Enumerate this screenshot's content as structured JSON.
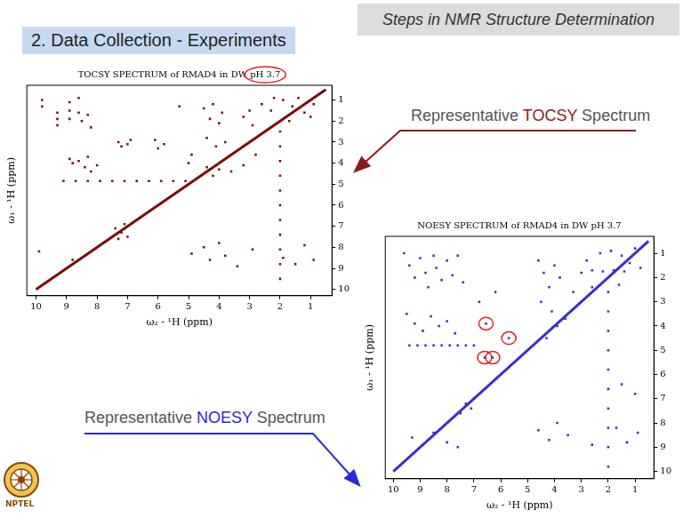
{
  "header": "Steps in NMR Structure Determination",
  "section_title": "2. Data Collection - Experiments",
  "labels": [
    {
      "text": "Representative TOCSY Spectrum",
      "emphasis": "TOCSY",
      "color": "#8b1a1a"
    },
    {
      "text": "Representative NOESY Spectrum",
      "emphasis": "NOESY",
      "color": "#2a2ad0"
    }
  ],
  "logo_text": "NPTEL",
  "chart_data": [
    {
      "type": "scatter",
      "title": "TOCSY SPECTRUM of RMAD4 in DW pH 3.7",
      "title_highlight": "pH 3.7",
      "x_label": "ω₂ - ¹H (ppm)",
      "y_label": "ω₁ - ¹H (ppm)",
      "xlim": [
        10.3,
        0.3
      ],
      "ylim": [
        10.3,
        0.3
      ],
      "xticks": [
        10,
        9,
        8,
        7,
        6,
        5,
        4,
        3,
        2,
        1
      ],
      "yticks": [
        1,
        2,
        3,
        4,
        5,
        6,
        7,
        8,
        9,
        10
      ],
      "color": "#7b0c0c",
      "grid": false,
      "marker": "square",
      "diagonal": [
        [
          10,
          10
        ],
        [
          0.5,
          0.5
        ]
      ],
      "peaks": [
        [
          9.8,
          1.0
        ],
        [
          9.8,
          1.3
        ],
        [
          9.3,
          1.6
        ],
        [
          9.3,
          1.9
        ],
        [
          9.3,
          2.2
        ],
        [
          8.9,
          1.1
        ],
        [
          8.9,
          1.5
        ],
        [
          8.9,
          1.9
        ],
        [
          8.6,
          0.9
        ],
        [
          8.6,
          1.6
        ],
        [
          8.5,
          2.0
        ],
        [
          8.3,
          1.7
        ],
        [
          8.2,
          2.3
        ],
        [
          8.9,
          3.8
        ],
        [
          8.8,
          4.0
        ],
        [
          8.6,
          3.9
        ],
        [
          8.4,
          4.2
        ],
        [
          8.3,
          3.7
        ],
        [
          8.2,
          4.4
        ],
        [
          8.0,
          4.1
        ],
        [
          9.1,
          4.85
        ],
        [
          8.7,
          4.85
        ],
        [
          8.3,
          4.85
        ],
        [
          7.9,
          4.85
        ],
        [
          7.5,
          4.85
        ],
        [
          7.1,
          4.85
        ],
        [
          6.7,
          4.85
        ],
        [
          6.3,
          4.85
        ],
        [
          5.9,
          4.85
        ],
        [
          5.5,
          4.85
        ],
        [
          5.1,
          4.85
        ],
        [
          7.4,
          7.1
        ],
        [
          7.2,
          7.3
        ],
        [
          7.0,
          7.5
        ],
        [
          7.3,
          7.6
        ],
        [
          7.1,
          6.9
        ],
        [
          7.3,
          3.0
        ],
        [
          7.2,
          3.2
        ],
        [
          7.0,
          3.1
        ],
        [
          6.9,
          2.9
        ],
        [
          6.1,
          2.9
        ],
        [
          5.8,
          3.1
        ],
        [
          6.0,
          3.3
        ],
        [
          4.5,
          1.4
        ],
        [
          4.3,
          1.9
        ],
        [
          4.2,
          1.2
        ],
        [
          4.0,
          2.1
        ],
        [
          3.9,
          1.6
        ],
        [
          4.4,
          2.8
        ],
        [
          4.1,
          3.2
        ],
        [
          3.8,
          3.0
        ],
        [
          4.2,
          4.6
        ],
        [
          4.0,
          4.3
        ],
        [
          4.4,
          4.2
        ],
        [
          3.6,
          4.4
        ],
        [
          3.2,
          1.8
        ],
        [
          3.0,
          1.5
        ],
        [
          2.9,
          2.2
        ],
        [
          2.6,
          1.2
        ],
        [
          1.9,
          1.0
        ],
        [
          1.6,
          1.3
        ],
        [
          1.4,
          0.9
        ],
        [
          1.2,
          1.6
        ],
        [
          1.0,
          1.8
        ],
        [
          0.9,
          1.2
        ],
        [
          1.7,
          2.0
        ],
        [
          2.3,
          1.5
        ],
        [
          2.2,
          0.9
        ],
        [
          2.0,
          2.5
        ],
        [
          2.0,
          3.2
        ],
        [
          2.0,
          3.9
        ],
        [
          2.0,
          4.6
        ],
        [
          2.0,
          5.3
        ],
        [
          2.0,
          6.0
        ],
        [
          2.0,
          6.7
        ],
        [
          2.0,
          7.4
        ],
        [
          2.0,
          8.1
        ],
        [
          2.0,
          8.8
        ],
        [
          2.0,
          9.5
        ],
        [
          9.9,
          8.2
        ],
        [
          8.8,
          8.6
        ],
        [
          4.9,
          8.3
        ],
        [
          4.5,
          8.0
        ],
        [
          4.3,
          8.6
        ],
        [
          4.0,
          7.8
        ],
        [
          3.8,
          8.4
        ],
        [
          3.4,
          8.9
        ],
        [
          2.9,
          8.1
        ],
        [
          1.9,
          8.5
        ],
        [
          1.5,
          8.8
        ],
        [
          1.2,
          7.9
        ],
        [
          0.9,
          8.6
        ],
        [
          5.3,
          1.3
        ],
        [
          4.9,
          3.6
        ],
        [
          5.0,
          4.0
        ],
        [
          3.2,
          4.1
        ],
        [
          2.8,
          3.6
        ]
      ],
      "circled": []
    },
    {
      "type": "scatter",
      "title": "NOESY SPECTRUM of RMAD4 in DW pH 3.7",
      "x_label": "ω₂ - ¹H (ppm)",
      "y_label": "ω₁ - ¹H (ppm)",
      "xlim": [
        10.3,
        0.3
      ],
      "ylim": [
        10.3,
        0.3
      ],
      "xticks": [
        10,
        9,
        8,
        7,
        6,
        5,
        4,
        3,
        2,
        1
      ],
      "yticks": [
        1,
        2,
        3,
        4,
        5,
        6,
        7,
        8,
        9,
        10
      ],
      "color": "#3a2fd0",
      "grid": false,
      "marker": "square",
      "diagonal": [
        [
          10,
          10
        ],
        [
          0.5,
          0.5
        ]
      ],
      "peaks": [
        [
          9.6,
          1.0
        ],
        [
          9.4,
          1.5
        ],
        [
          9.2,
          2.0
        ],
        [
          9.0,
          1.2
        ],
        [
          8.8,
          1.8
        ],
        [
          8.7,
          2.4
        ],
        [
          8.5,
          1.1
        ],
        [
          8.4,
          1.6
        ],
        [
          8.2,
          2.1
        ],
        [
          8.0,
          1.3
        ],
        [
          7.8,
          1.9
        ],
        [
          7.6,
          1.1
        ],
        [
          7.4,
          2.2
        ],
        [
          9.5,
          3.5
        ],
        [
          9.2,
          3.9
        ],
        [
          8.9,
          4.2
        ],
        [
          8.6,
          3.6
        ],
        [
          8.3,
          4.0
        ],
        [
          8.0,
          3.8
        ],
        [
          7.7,
          4.3
        ],
        [
          9.4,
          4.8
        ],
        [
          9.1,
          4.8
        ],
        [
          8.8,
          4.8
        ],
        [
          8.5,
          4.8
        ],
        [
          8.2,
          4.8
        ],
        [
          7.9,
          4.8
        ],
        [
          7.6,
          4.8
        ],
        [
          7.3,
          4.8
        ],
        [
          7.0,
          4.8
        ],
        [
          7.3,
          7.2
        ],
        [
          7.1,
          7.4
        ],
        [
          7.5,
          7.6
        ],
        [
          7.0,
          7.0
        ],
        [
          6.55,
          3.9
        ],
        [
          6.6,
          5.3
        ],
        [
          6.3,
          5.3
        ],
        [
          5.7,
          4.5
        ],
        [
          6.8,
          3.0
        ],
        [
          6.2,
          2.6
        ],
        [
          4.6,
          1.3
        ],
        [
          4.4,
          1.8
        ],
        [
          4.2,
          2.4
        ],
        [
          4.0,
          1.5
        ],
        [
          3.8,
          2.0
        ],
        [
          4.5,
          3.0
        ],
        [
          4.1,
          3.4
        ],
        [
          3.9,
          4.0
        ],
        [
          4.3,
          4.5
        ],
        [
          3.6,
          3.7
        ],
        [
          3.3,
          2.6
        ],
        [
          3.0,
          1.8
        ],
        [
          2.8,
          1.3
        ],
        [
          2.6,
          2.4
        ],
        [
          2.6,
          1.7
        ],
        [
          2.2,
          1.75
        ],
        [
          1.8,
          1.7
        ],
        [
          1.4,
          1.75
        ],
        [
          1.9,
          0.9
        ],
        [
          1.5,
          1.1
        ],
        [
          1.2,
          1.4
        ],
        [
          1.0,
          0.8
        ],
        [
          0.8,
          1.6
        ],
        [
          2.3,
          1.0
        ],
        [
          1.6,
          2.3
        ],
        [
          2.0,
          2.6
        ],
        [
          2.0,
          3.4
        ],
        [
          2.0,
          4.2
        ],
        [
          2.0,
          5.0
        ],
        [
          2.0,
          5.8
        ],
        [
          2.0,
          6.6
        ],
        [
          2.0,
          7.4
        ],
        [
          2.0,
          8.2
        ],
        [
          2.0,
          9.0
        ],
        [
          2.0,
          9.8
        ],
        [
          9.3,
          8.6
        ],
        [
          8.9,
          8.9
        ],
        [
          8.5,
          8.4
        ],
        [
          8.0,
          8.8
        ],
        [
          7.6,
          9.0
        ],
        [
          4.6,
          8.3
        ],
        [
          4.2,
          8.7
        ],
        [
          3.9,
          8.0
        ],
        [
          3.5,
          8.5
        ],
        [
          2.6,
          8.9
        ],
        [
          1.7,
          8.2
        ],
        [
          1.3,
          8.8
        ],
        [
          0.9,
          8.4
        ],
        [
          1.0,
          6.8
        ],
        [
          1.5,
          6.4
        ]
      ],
      "circled": [
        [
          6.55,
          3.9
        ],
        [
          6.6,
          5.3
        ],
        [
          6.3,
          5.3
        ],
        [
          5.7,
          4.5
        ]
      ]
    }
  ]
}
